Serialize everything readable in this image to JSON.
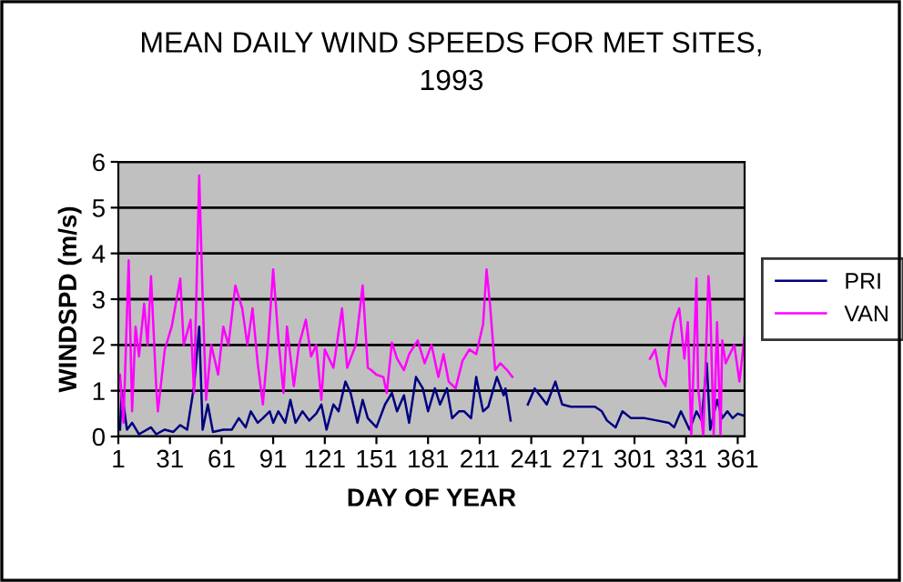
{
  "chart_data": {
    "type": "line",
    "title": "MEAN DAILY WIND SPEEDS FOR MET SITES,\n1993",
    "xlabel": "DAY OF YEAR",
    "ylabel": "WINDSPD (m/s)",
    "xlim": [
      1,
      365
    ],
    "xticks": [
      1,
      31,
      61,
      91,
      121,
      151,
      181,
      211,
      241,
      271,
      301,
      331,
      361
    ],
    "ylim": [
      0,
      6
    ],
    "yticks": [
      0,
      1,
      2,
      3,
      4,
      5,
      6
    ],
    "grid": "y",
    "legend": "right",
    "marker": "none",
    "line_style": "solid",
    "series": [
      {
        "name": "PRI",
        "color": "#000080",
        "x": [
          2,
          3,
          6,
          9,
          13,
          20,
          23,
          28,
          33,
          37,
          41,
          45,
          48,
          50,
          53,
          56,
          62,
          67,
          71,
          75,
          78,
          82,
          85,
          89,
          91,
          94,
          98,
          101,
          104,
          108,
          112,
          116,
          119,
          122,
          126,
          129,
          133,
          136,
          140,
          143,
          146,
          151,
          156,
          160,
          163,
          167,
          170,
          174,
          178,
          181,
          185,
          188,
          192,
          195,
          199,
          202,
          206,
          209,
          213,
          216,
          221,
          225,
          226,
          229,
          233,
          239,
          243,
          246,
          250,
          255,
          259,
          264,
          271,
          278,
          282,
          285,
          290,
          294,
          299,
          307,
          314,
          321,
          324,
          328,
          333,
          337,
          340,
          343,
          345,
          349,
          352,
          355,
          358,
          361,
          365
        ],
        "values": [
          0.15,
          1.0,
          0.15,
          0.3,
          0.05,
          0.2,
          0.05,
          0.15,
          0.1,
          0.25,
          0.15,
          1.1,
          2.4,
          0.15,
          0.7,
          0.1,
          0.15,
          0.15,
          0.4,
          0.2,
          0.55,
          0.3,
          0.4,
          0.55,
          0.3,
          0.55,
          0.3,
          0.8,
          0.3,
          0.55,
          0.35,
          0.5,
          0.7,
          0.15,
          0.7,
          0.55,
          1.2,
          0.95,
          0.3,
          0.8,
          0.4,
          0.2,
          0.7,
          0.95,
          0.55,
          0.9,
          0.3,
          1.3,
          1.05,
          0.55,
          1.05,
          0.7,
          1.05,
          0.4,
          0.55,
          0.55,
          0.4,
          1.3,
          0.55,
          0.65,
          1.3,
          0.9,
          1.05,
          0.35,
          null,
          0.7,
          1.05,
          0.9,
          0.7,
          1.2,
          0.7,
          0.65,
          0.65,
          0.65,
          0.55,
          0.35,
          0.2,
          0.55,
          0.4,
          0.4,
          0.35,
          0.3,
          0.2,
          0.55,
          0.15,
          0.55,
          0.35,
          1.6,
          0.15,
          0.8,
          0.4,
          0.55,
          0.4,
          0.5,
          0.45
        ]
      },
      {
        "name": "VAN",
        "color": "#ff00ff",
        "x": [
          2,
          4,
          7,
          9,
          11,
          13,
          16,
          18,
          20,
          23,
          24,
          28,
          32,
          37,
          39,
          43,
          45,
          48,
          50,
          52,
          55,
          59,
          62,
          65,
          69,
          73,
          76,
          79,
          82,
          85,
          88,
          91,
          94,
          97,
          99,
          103,
          106,
          110,
          113,
          116,
          119,
          121,
          126,
          131,
          134,
          139,
          143,
          146,
          148,
          151,
          155,
          157,
          160,
          163,
          167,
          170,
          175,
          179,
          183,
          187,
          190,
          193,
          197,
          201,
          205,
          209,
          213,
          215,
          217,
          220,
          223,
          227,
          230,
          235,
          310,
          313,
          316,
          319,
          321,
          324,
          327,
          330,
          332,
          334,
          337,
          338,
          341,
          344,
          345,
          347,
          349,
          351,
          352,
          354,
          359,
          362,
          365
        ],
        "values": [
          1.35,
          0.3,
          3.85,
          0.55,
          2.4,
          1.75,
          2.9,
          2.0,
          3.5,
          1.1,
          0.55,
          1.9,
          2.4,
          3.45,
          2.0,
          2.55,
          0.95,
          5.7,
          3.05,
          0.8,
          2.0,
          1.35,
          2.4,
          2.0,
          3.3,
          2.8,
          2.0,
          2.8,
          1.6,
          0.7,
          2.0,
          3.65,
          2.15,
          0.95,
          2.4,
          1.1,
          2.0,
          2.55,
          1.75,
          2.0,
          0.8,
          1.9,
          1.5,
          2.8,
          1.5,
          2.0,
          3.3,
          1.5,
          1.45,
          1.35,
          1.3,
          0.95,
          2.05,
          1.7,
          1.45,
          1.8,
          2.1,
          1.6,
          2.0,
          1.3,
          1.8,
          1.2,
          1.05,
          1.65,
          1.9,
          1.8,
          2.45,
          3.65,
          2.9,
          1.45,
          1.6,
          1.45,
          1.3,
          null,
          1.7,
          1.9,
          1.3,
          1.1,
          1.9,
          2.5,
          2.8,
          1.7,
          2.5,
          0,
          3.45,
          1.05,
          0,
          3.5,
          2.9,
          0,
          2.5,
          0,
          2.1,
          1.6,
          2.0,
          1.2,
          2.2
        ]
      }
    ]
  }
}
